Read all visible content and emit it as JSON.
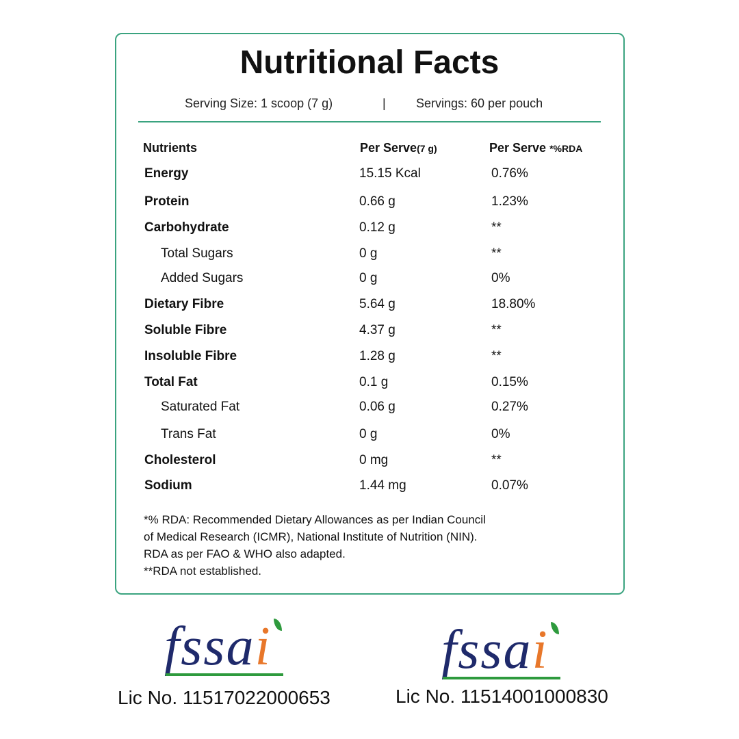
{
  "title": "Nutritional Facts",
  "serving": {
    "size": "Serving Size: 1 scoop (7 g)",
    "separator": "|",
    "servings": "Servings: 60 per pouch"
  },
  "table": {
    "header": {
      "nutrients": "Nutrients",
      "per_serve": "Per Serve",
      "per_serve_unit": "(7 g)",
      "rda": "Per Serve",
      "rda_unit": "*%RDA"
    },
    "rows": [
      {
        "name": "Energy",
        "amount": "15.15 Kcal",
        "rda": "0.76%"
      },
      {
        "name": "Protein",
        "amount": "0.66 g",
        "rda": "1.23%"
      },
      {
        "name": "Carbohydrate",
        "amount": "0.12 g",
        "rda": "**",
        "children": [
          {
            "name": "Total Sugars",
            "amount": "0 g",
            "rda": "**"
          },
          {
            "name": "Added Sugars",
            "amount": "0 g",
            "rda": "0%"
          }
        ]
      },
      {
        "name": "Dietary Fibre",
        "amount": "5.64 g",
        "rda": "18.80%"
      },
      {
        "name": "Soluble Fibre",
        "amount": "4.37 g",
        "rda": "**"
      },
      {
        "name": "Insoluble Fibre",
        "amount": "1.28 g",
        "rda": "**"
      },
      {
        "name": "Total Fat",
        "amount": "0.1 g",
        "rda": "0.15%",
        "children": [
          {
            "name": "Saturated Fat",
            "amount": "0.06 g",
            "rda": "0.27%"
          },
          {
            "name": "Trans Fat",
            "amount": "0 g",
            "rda": "0%"
          }
        ]
      },
      {
        "name": "Cholesterol",
        "amount": "0 mg",
        "rda": "**"
      },
      {
        "name": "Sodium",
        "amount": "1.44 mg",
        "rda": "0.07%"
      }
    ]
  },
  "footnotes": [
    "*% RDA: Recommended Dietary Allowances as per Indian Council",
    "of Medical Research (ICMR), National Institute of Nutrition (NIN).",
    "RDA as per FAO & WHO also adapted.",
    "**RDA not established."
  ],
  "logos": [
    {
      "mark": "fssa",
      "mark_end": "i",
      "license": "Lic No. 11517022000653"
    },
    {
      "mark": "fssa",
      "mark_end": "i",
      "license": "Lic No. 11514001000830"
    }
  ]
}
